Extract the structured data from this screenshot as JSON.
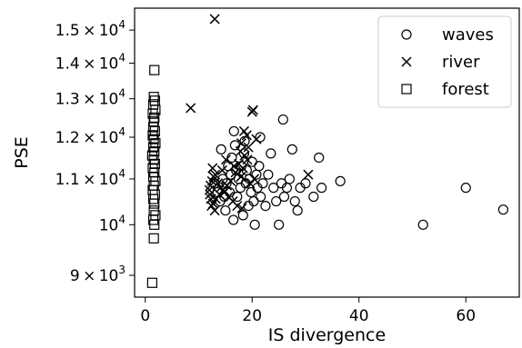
{
  "chart_data": {
    "type": "scatter",
    "xlabel": "IS divergence",
    "ylabel": "PSE",
    "xlim": [
      -2,
      70
    ],
    "ylim": [
      8600,
      15700
    ],
    "yscale": "log",
    "legend_position": "top-right",
    "grid": false,
    "x_ticks": [
      {
        "value": 0,
        "label": "0"
      },
      {
        "value": 20,
        "label": "20"
      },
      {
        "value": 40,
        "label": "40"
      },
      {
        "value": 60,
        "label": "60"
      }
    ],
    "y_ticks": [
      {
        "value": 9000,
        "mant": "9",
        "exp": "3"
      },
      {
        "value": 10000,
        "mant": "",
        "exp": "4"
      },
      {
        "value": 11000,
        "mant": "1.1",
        "exp": "4"
      },
      {
        "value": 12000,
        "mant": "1.2",
        "exp": "4"
      },
      {
        "value": 13000,
        "mant": "1.3",
        "exp": "4"
      },
      {
        "value": 14000,
        "mant": "1.4",
        "exp": "4"
      },
      {
        "value": 15000,
        "mant": "1.5",
        "exp": "4"
      }
    ],
    "series": [
      {
        "name": "waves",
        "marker": "circle",
        "points": [
          [
            13.0,
            10900
          ],
          [
            13.5,
            10700
          ],
          [
            14.0,
            10500
          ],
          [
            14.5,
            11000
          ],
          [
            14.8,
            10600
          ],
          [
            15.0,
            10300
          ],
          [
            15.2,
            10900
          ],
          [
            15.5,
            11300
          ],
          [
            15.8,
            10700
          ],
          [
            16.0,
            11100
          ],
          [
            16.2,
            11500
          ],
          [
            16.5,
            10100
          ],
          [
            16.8,
            11800
          ],
          [
            17.0,
            11200
          ],
          [
            17.2,
            10600
          ],
          [
            17.5,
            11000
          ],
          [
            17.8,
            10800
          ],
          [
            18.0,
            11300
          ],
          [
            18.3,
            10200
          ],
          [
            18.5,
            11600
          ],
          [
            18.8,
            10900
          ],
          [
            19.0,
            11200
          ],
          [
            19.3,
            10400
          ],
          [
            19.5,
            11000
          ],
          [
            19.8,
            10700
          ],
          [
            20.0,
            11400
          ],
          [
            20.3,
            10500
          ],
          [
            20.5,
            10000
          ],
          [
            20.8,
            11100
          ],
          [
            21.0,
            10800
          ],
          [
            21.3,
            11300
          ],
          [
            21.6,
            10600
          ],
          [
            22.0,
            10900
          ],
          [
            22.5,
            10400
          ],
          [
            23.0,
            11100
          ],
          [
            23.5,
            11600
          ],
          [
            24.0,
            10800
          ],
          [
            24.5,
            10500
          ],
          [
            25.0,
            10000
          ],
          [
            25.5,
            10900
          ],
          [
            26.0,
            10600
          ],
          [
            26.5,
            10800
          ],
          [
            27.0,
            11000
          ],
          [
            27.5,
            11700
          ],
          [
            28.0,
            10500
          ],
          [
            28.5,
            10300
          ],
          [
            29.0,
            10800
          ],
          [
            30.0,
            10900
          ],
          [
            31.5,
            10600
          ],
          [
            32.5,
            11500
          ],
          [
            33.0,
            10800
          ],
          [
            36.5,
            10950
          ],
          [
            25.8,
            12450
          ],
          [
            52.0,
            10000
          ],
          [
            60.0,
            10800
          ],
          [
            67.0,
            10320
          ],
          [
            14.2,
            11700
          ],
          [
            16.6,
            12150
          ],
          [
            18.6,
            11900
          ],
          [
            21.5,
            12000
          ]
        ]
      },
      {
        "name": "river",
        "marker": "cross",
        "points": [
          [
            13.0,
            15350
          ],
          [
            8.5,
            12750
          ],
          [
            20.0,
            12650
          ],
          [
            20.2,
            12700
          ],
          [
            18.5,
            12150
          ],
          [
            19.0,
            12050
          ],
          [
            20.8,
            11950
          ],
          [
            18.0,
            11850
          ],
          [
            19.3,
            11750
          ],
          [
            17.8,
            11650
          ],
          [
            18.6,
            11550
          ],
          [
            19.1,
            11450
          ],
          [
            17.5,
            11350
          ],
          [
            18.3,
            11250
          ],
          [
            16.9,
            11150
          ],
          [
            17.9,
            11050
          ],
          [
            16.0,
            10950
          ],
          [
            15.3,
            10850
          ],
          [
            14.6,
            10750
          ],
          [
            13.9,
            10650
          ],
          [
            13.2,
            10550
          ],
          [
            12.7,
            10450
          ],
          [
            12.3,
            10550
          ],
          [
            12.1,
            10650
          ],
          [
            12.0,
            10750
          ],
          [
            12.2,
            10850
          ],
          [
            12.5,
            10950
          ],
          [
            12.8,
            11050
          ],
          [
            13.1,
            11100
          ],
          [
            13.6,
            10900
          ],
          [
            14.1,
            10800
          ],
          [
            14.8,
            10700
          ],
          [
            15.6,
            10600
          ],
          [
            16.4,
            10500
          ],
          [
            17.2,
            10400
          ],
          [
            18.1,
            10350
          ],
          [
            12.4,
            10400
          ],
          [
            13.0,
            10300
          ],
          [
            14.4,
            11200
          ],
          [
            16.6,
            11300
          ],
          [
            30.5,
            11100
          ],
          [
            19.6,
            10900
          ],
          [
            20.4,
            11000
          ],
          [
            12.6,
            11250
          ],
          [
            15.1,
            11450
          ]
        ]
      },
      {
        "name": "forest",
        "marker": "square",
        "points": [
          [
            1.7,
            13800
          ],
          [
            1.6,
            13050
          ],
          [
            1.8,
            12950
          ],
          [
            1.5,
            12850
          ],
          [
            1.9,
            12700
          ],
          [
            1.4,
            12600
          ],
          [
            1.7,
            12500
          ],
          [
            1.6,
            12400
          ],
          [
            1.5,
            12250
          ],
          [
            1.8,
            12150
          ],
          [
            1.4,
            12050
          ],
          [
            1.6,
            11950
          ],
          [
            1.9,
            11850
          ],
          [
            1.5,
            11750
          ],
          [
            1.7,
            11650
          ],
          [
            1.3,
            11550
          ],
          [
            1.6,
            11450
          ],
          [
            1.8,
            11350
          ],
          [
            1.4,
            11250
          ],
          [
            1.7,
            11150
          ],
          [
            1.5,
            11050
          ],
          [
            1.9,
            10950
          ],
          [
            1.6,
            10850
          ],
          [
            1.4,
            10750
          ],
          [
            1.8,
            10650
          ],
          [
            1.5,
            10550
          ],
          [
            1.7,
            10450
          ],
          [
            1.6,
            10300
          ],
          [
            1.9,
            10200
          ],
          [
            1.5,
            10100
          ],
          [
            1.7,
            10000
          ],
          [
            1.6,
            9720
          ],
          [
            1.3,
            8860
          ]
        ]
      }
    ]
  }
}
